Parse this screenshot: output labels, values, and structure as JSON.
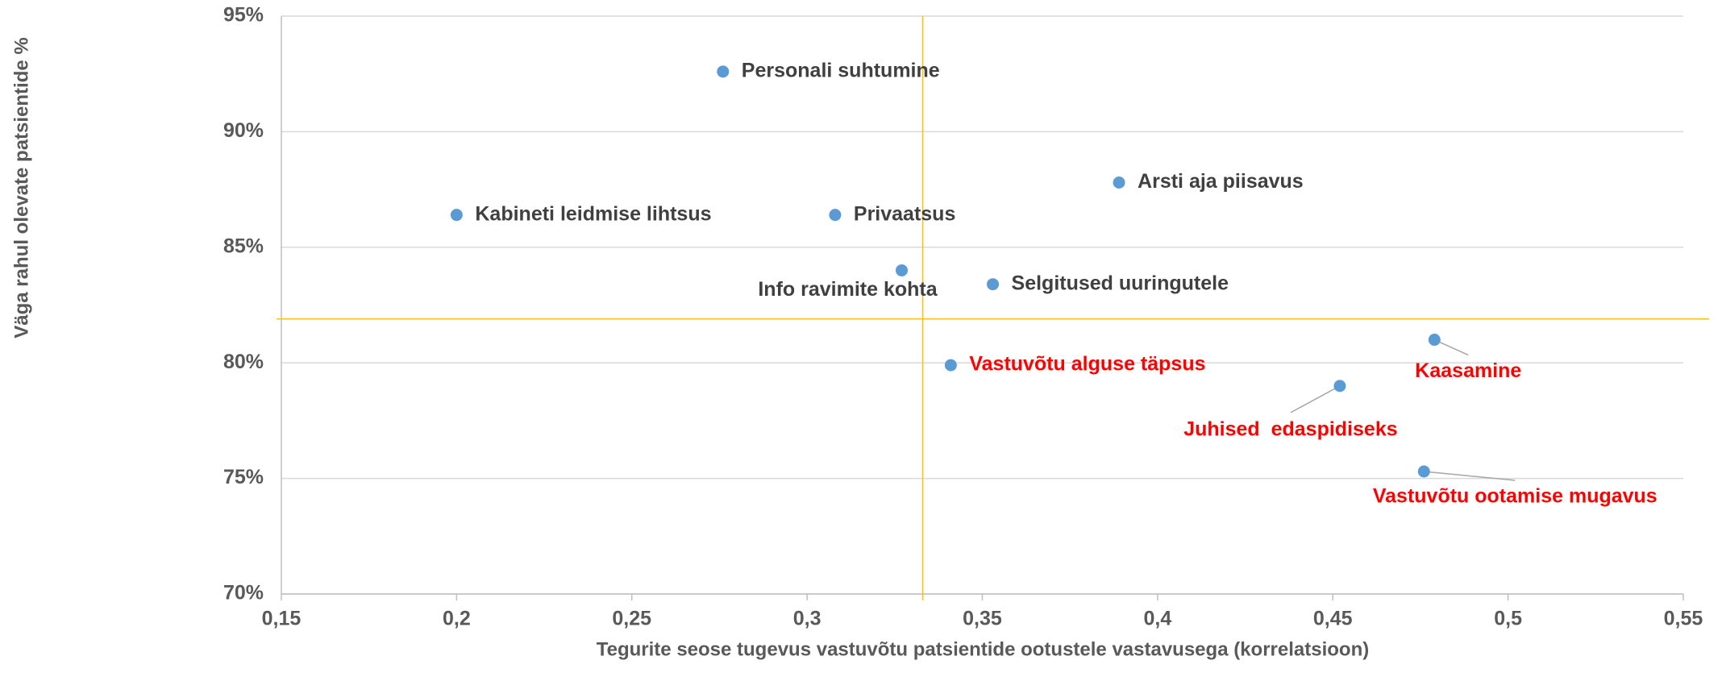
{
  "chart_data": {
    "type": "scatter",
    "xlabel": "Tegurite seose tugevus vastuvõtu patsientide ootustele vastavusega (korrelatsioon)",
    "ylabel": "Väga rahul olevate patsientide %",
    "xlim": [
      0.15,
      0.55
    ],
    "xticks": [
      {
        "value": 0.15,
        "label": "0,15"
      },
      {
        "value": 0.2,
        "label": "0,2"
      },
      {
        "value": 0.25,
        "label": "0,25"
      },
      {
        "value": 0.3,
        "label": "0,3"
      },
      {
        "value": 0.35,
        "label": "0,35"
      },
      {
        "value": 0.4,
        "label": "0,4"
      },
      {
        "value": 0.45,
        "label": "0,45"
      },
      {
        "value": 0.5,
        "label": "0,5"
      },
      {
        "value": 0.55,
        "label": "0,55"
      }
    ],
    "ylim": [
      70,
      95
    ],
    "yticks": [
      {
        "value": 70,
        "label": "70%"
      },
      {
        "value": 75,
        "label": "75%"
      },
      {
        "value": 80,
        "label": "80%"
      },
      {
        "value": 85,
        "label": "85%"
      },
      {
        "value": 90,
        "label": "90%"
      },
      {
        "value": 95,
        "label": "95%"
      }
    ],
    "grid": true,
    "marker_color": "#5b9bd5",
    "reference_x": 0.333,
    "reference_y": 81.9,
    "reference_color": "#ffc000",
    "points": [
      {
        "label": "Personali suhtumine",
        "x": 0.276,
        "y": 92.6,
        "label_color": "#404040"
      },
      {
        "label": "Kabineti leidmise lihtsus",
        "x": 0.2,
        "y": 86.4,
        "label_color": "#404040"
      },
      {
        "label": "Privaatsus",
        "x": 0.308,
        "y": 86.4,
        "label_color": "#404040"
      },
      {
        "label": "Arsti aja piisavus",
        "x": 0.389,
        "y": 87.8,
        "label_color": "#404040"
      },
      {
        "label": "Info ravimite kohta",
        "x": 0.327,
        "y": 84.0,
        "label_color": "#404040"
      },
      {
        "label": "Selgitused uuringutele",
        "x": 0.353,
        "y": 83.4,
        "label_color": "#404040"
      },
      {
        "label": "Vastuvõtu alguse täpsus",
        "x": 0.341,
        "y": 79.9,
        "label_color": "#ff0000"
      },
      {
        "label": "Kaasamine",
        "x": 0.479,
        "y": 81.0,
        "label_color": "#ff0000"
      },
      {
        "label": "Juhised  edaspidiseks",
        "x": 0.452,
        "y": 79.0,
        "label_color": "#ff0000"
      },
      {
        "label": "Vastuvõtu ootamise mugavus",
        "x": 0.476,
        "y": 75.3,
        "label_color": "#ff0000"
      }
    ]
  }
}
